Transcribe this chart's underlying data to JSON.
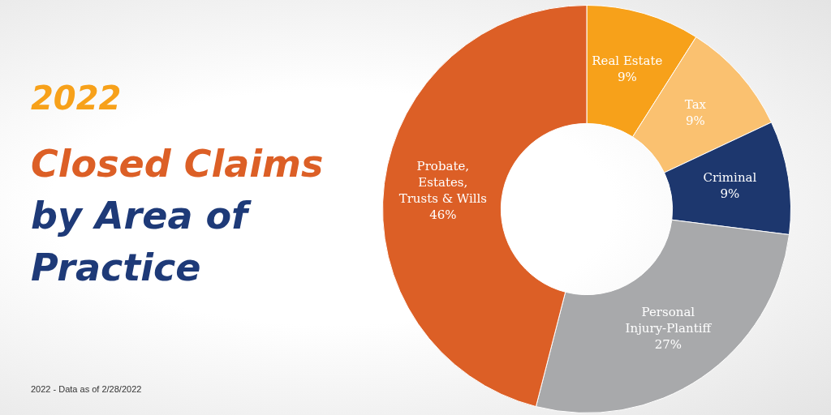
{
  "chart_data": {
    "type": "donut",
    "title": "2022",
    "subtitle": "Closed Claims by Area of Practice",
    "categories": [
      "Real Estate",
      "Tax",
      "Criminal",
      "Personal Injury-Plantiff",
      "Probate, Estates, Trusts & Wills"
    ],
    "values": [
      9,
      9,
      9,
      27,
      46
    ],
    "colors": [
      "#f7a11a",
      "#fac170",
      "#1d376e",
      "#a8a9ab",
      "#dc5f26"
    ],
    "value_labels": [
      "9%",
      "9%",
      "9%",
      "27%",
      "46%"
    ],
    "legend": false,
    "annotations": [
      "2022 - Data as of 2/28/2022"
    ]
  }
}
